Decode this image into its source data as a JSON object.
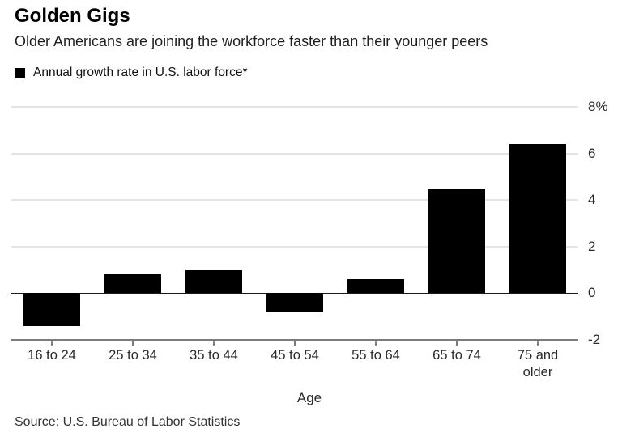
{
  "header": {
    "title": "Golden Gigs",
    "subtitle": "Older Americans are joining the workforce faster than their younger peers"
  },
  "legend": {
    "label": "Annual growth rate in U.S. labor force*",
    "swatch_color": "#000000"
  },
  "chart_data": {
    "type": "bar",
    "title": "Golden Gigs",
    "subtitle": "Older Americans are joining the workforce faster than their younger peers",
    "series_label": "Annual growth rate in U.S. labor force*",
    "categories": [
      "16 to 24",
      "25 to 34",
      "35 to 44",
      "45 to 54",
      "55 to 64",
      "65 to 74",
      "75 and older"
    ],
    "values": [
      -1.4,
      0.8,
      1.0,
      -0.8,
      0.6,
      4.5,
      6.4
    ],
    "xlabel": "Age",
    "ylabel": "",
    "ylim": [
      -2,
      8
    ],
    "yticks": [
      8,
      6,
      4,
      2,
      0,
      -2
    ],
    "ytick_labels": [
      "8%",
      "6",
      "4",
      "2",
      "0",
      "-2"
    ],
    "bar_color": "#000000",
    "grid": true,
    "gridline_color": "#e4e4e4",
    "zero_line_color": "#1a1a1a",
    "axis_color": "#7d7d7d",
    "legend_position": "top-left",
    "ytick_label_side": "right"
  },
  "footer": {
    "source": "Source: U.S. Bureau of Labor Statistics"
  }
}
